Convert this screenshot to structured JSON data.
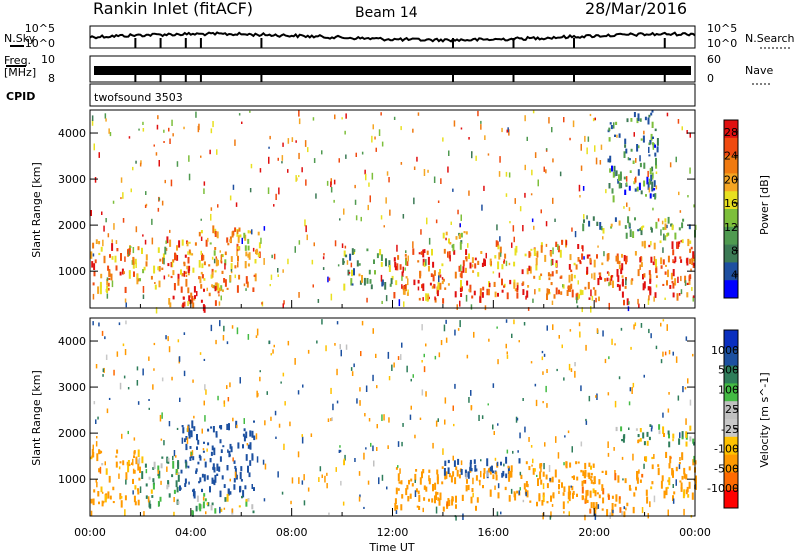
{
  "header": {
    "station": "Rankin Inlet (fitACF)",
    "beam": "Beam 14",
    "date": "28/Mar/2016"
  },
  "summary": {
    "nsky_label": "N.Sky",
    "nsearch_label": "N.Search",
    "noise_ticks": [
      "10^5",
      "10^0"
    ],
    "freq_label": "Freq.",
    "freq_unit": "[MHz]",
    "freq_ticks": [
      "10",
      "8"
    ],
    "nave_label": "Nave",
    "nave_ticks": [
      "60",
      "0"
    ],
    "cpid_label": "CPID",
    "cpid_value": "twofsound 3503"
  },
  "colors": {
    "power": [
      "#0000ff",
      "#1e4fa0",
      "#3c7a55",
      "#4f9a50",
      "#7dbf3b",
      "#e8e020",
      "#f5a623",
      "#f07a10",
      "#f04a10",
      "#e01010"
    ],
    "velocity": [
      "#ff0000",
      "#ff6a00",
      "#ff9a00",
      "#ffc200",
      "#c8c8c8",
      "#c0c0c0",
      "#44bb44",
      "#2e7d5a",
      "#1c50a0",
      "#0a2fbf"
    ]
  },
  "chart_data": [
    {
      "type": "heatmap",
      "name": "power",
      "xlabel": "Time UT",
      "ylabel": "Slant Range [km]",
      "x_ticks": [
        "00:00",
        "04:00",
        "08:00",
        "12:00",
        "16:00",
        "20:00",
        "00:00"
      ],
      "y_ticks": [
        1000,
        2000,
        3000,
        4000
      ],
      "ylim": [
        200,
        4500
      ],
      "xlim_hours": [
        0,
        24
      ],
      "colorbar_label": "Power [dB]",
      "colorbar_ticks": [
        4,
        8,
        12,
        16,
        20,
        24,
        28
      ],
      "clim": [
        0,
        30
      ],
      "regions": [
        {
          "t": [
            0.0,
            1.5
          ],
          "r": [
            600,
            1700
          ],
          "v": 22
        },
        {
          "t": [
            1.5,
            3.0
          ],
          "r": [
            700,
            1600
          ],
          "v": 18
        },
        {
          "t": [
            3.0,
            4.2
          ],
          "r": [
            300,
            1800
          ],
          "v": 24
        },
        {
          "t": [
            4.2,
            6.8
          ],
          "r": [
            600,
            2000
          ],
          "v": 20
        },
        {
          "t": [
            3.5,
            5.0
          ],
          "r": [
            250,
            700
          ],
          "v": 28
        },
        {
          "t": [
            10.0,
            12.0
          ],
          "r": [
            700,
            1500
          ],
          "v": 12
        },
        {
          "t": [
            12.0,
            16.0
          ],
          "r": [
            400,
            1500
          ],
          "v": 24
        },
        {
          "t": [
            13.5,
            15.0
          ],
          "r": [
            1500,
            1900
          ],
          "v": 14
        },
        {
          "t": [
            16.0,
            19.5
          ],
          "r": [
            500,
            1700
          ],
          "v": 22
        },
        {
          "t": [
            19.5,
            21.5
          ],
          "r": [
            300,
            1400
          ],
          "v": 26
        },
        {
          "t": [
            21.5,
            24.0
          ],
          "r": [
            500,
            1700
          ],
          "v": 24
        },
        {
          "t": [
            19.5,
            24.0
          ],
          "r": [
            1800,
            2200
          ],
          "v": 12
        },
        {
          "t": [
            20.5,
            22.5
          ],
          "r": [
            2600,
            4500
          ],
          "v": 8
        }
      ]
    },
    {
      "type": "heatmap",
      "name": "velocity",
      "xlabel": "Time UT",
      "ylabel": "Slant Range [km]",
      "x_ticks": [
        "00:00",
        "04:00",
        "08:00",
        "12:00",
        "16:00",
        "20:00",
        "00:00"
      ],
      "y_ticks": [
        1000,
        2000,
        3000,
        4000
      ],
      "ylim": [
        200,
        4500
      ],
      "xlim_hours": [
        0,
        24
      ],
      "colorbar_label": "Velocity [m s^-1]",
      "colorbar_ticks": [
        "1000",
        "500",
        "100",
        "25",
        "-25",
        "-100",
        "-500",
        "-1000"
      ],
      "regions": [
        {
          "t": [
            0.0,
            2.0
          ],
          "r": [
            500,
            1700
          ],
          "v": -200
        },
        {
          "t": [
            2.0,
            3.5
          ],
          "r": [
            400,
            1600
          ],
          "v": 150
        },
        {
          "t": [
            3.5,
            6.5
          ],
          "r": [
            700,
            2300
          ],
          "v": 700
        },
        {
          "t": [
            4.0,
            6.5
          ],
          "r": [
            300,
            700
          ],
          "v": 100
        },
        {
          "t": [
            12.0,
            16.0
          ],
          "r": [
            400,
            1300
          ],
          "v": -300
        },
        {
          "t": [
            14.0,
            17.0
          ],
          "r": [
            1100,
            1500
          ],
          "v": 800
        },
        {
          "t": [
            16.0,
            20.0
          ],
          "r": [
            500,
            1400
          ],
          "v": -250
        },
        {
          "t": [
            19.5,
            22.0
          ],
          "r": [
            300,
            1200
          ],
          "v": -400
        },
        {
          "t": [
            20.5,
            24.0
          ],
          "r": [
            1800,
            2200
          ],
          "v": 0
        },
        {
          "t": [
            22.0,
            24.0
          ],
          "r": [
            600,
            1600
          ],
          "v": -200
        }
      ]
    }
  ]
}
